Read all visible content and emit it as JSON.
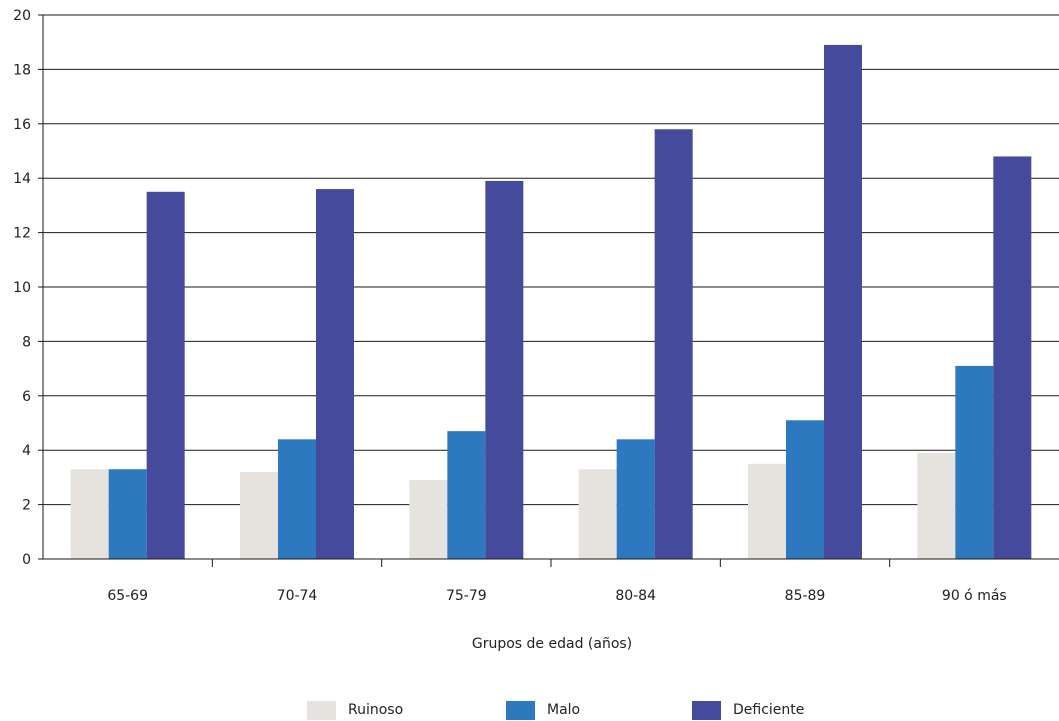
{
  "chart_data": {
    "type": "bar",
    "categories": [
      "65-69",
      "70-74",
      "75-79",
      "80-84",
      "85-89",
      "90 ó más"
    ],
    "series": [
      {
        "name": "Ruinoso",
        "color": "#e6e3df",
        "values": [
          3.3,
          3.2,
          2.9,
          3.3,
          3.5,
          3.9
        ]
      },
      {
        "name": "Malo",
        "color": "#2e78bf",
        "values": [
          3.3,
          4.4,
          4.7,
          4.4,
          5.1,
          7.1
        ]
      },
      {
        "name": "Deficiente",
        "color": "#454a9c",
        "values": [
          13.5,
          13.6,
          13.9,
          15.8,
          18.9,
          14.8
        ]
      }
    ],
    "title": "",
    "xlabel": "Grupos de edad (años)",
    "ylabel": "",
    "ylim": [
      0,
      20
    ],
    "yticks": [
      0,
      2,
      4,
      6,
      8,
      10,
      12,
      14,
      16,
      18,
      20
    ],
    "grid": true,
    "legend_position": "bottom"
  }
}
